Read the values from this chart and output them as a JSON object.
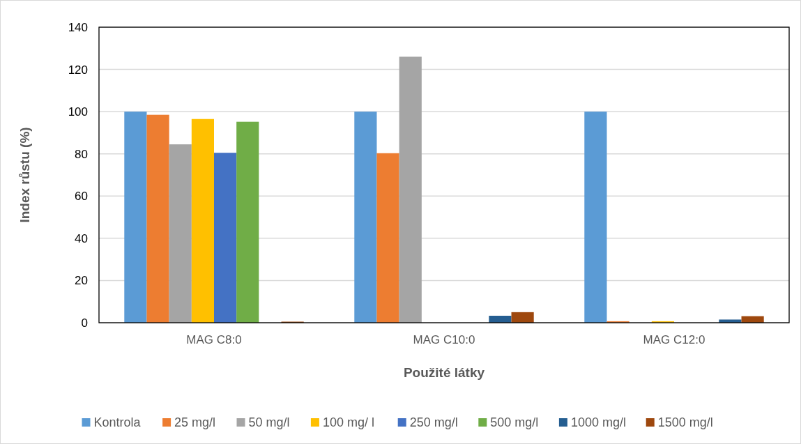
{
  "chart_data": {
    "type": "bar",
    "xlabel": "Použité látky",
    "ylabel": "Index růstu (%)",
    "categories": [
      "MAG C8:0",
      "MAG C10:0",
      "MAG C12:0"
    ],
    "series": [
      {
        "name": "Kontrola",
        "color": "#5b9bd5",
        "values": [
          100,
          100,
          100
        ]
      },
      {
        "name": "25 mg/l",
        "color": "#ed7d31",
        "values": [
          98.5,
          80.3,
          0.7
        ]
      },
      {
        "name": "50 mg/l",
        "color": "#a5a5a5",
        "values": [
          84.5,
          126,
          0
        ]
      },
      {
        "name": "100 mg/ l",
        "color": "#ffc000",
        "values": [
          96.5,
          0,
          0.7
        ]
      },
      {
        "name": "250 mg/l",
        "color": "#4472c4",
        "values": [
          80.5,
          0,
          0
        ]
      },
      {
        "name": "500 mg/l",
        "color": "#70ad47",
        "values": [
          95.2,
          0,
          0
        ]
      },
      {
        "name": "1000 mg/l",
        "color": "#255e91",
        "values": [
          0,
          3.3,
          1.5
        ]
      },
      {
        "name": "1500 mg/l",
        "color": "#9e480e",
        "values": [
          0.5,
          5,
          3.1
        ]
      }
    ],
    "ylim": [
      0,
      140
    ],
    "yticks": [
      0,
      20,
      40,
      60,
      80,
      100,
      120,
      140
    ],
    "grid": "y",
    "legend": "bottom"
  }
}
